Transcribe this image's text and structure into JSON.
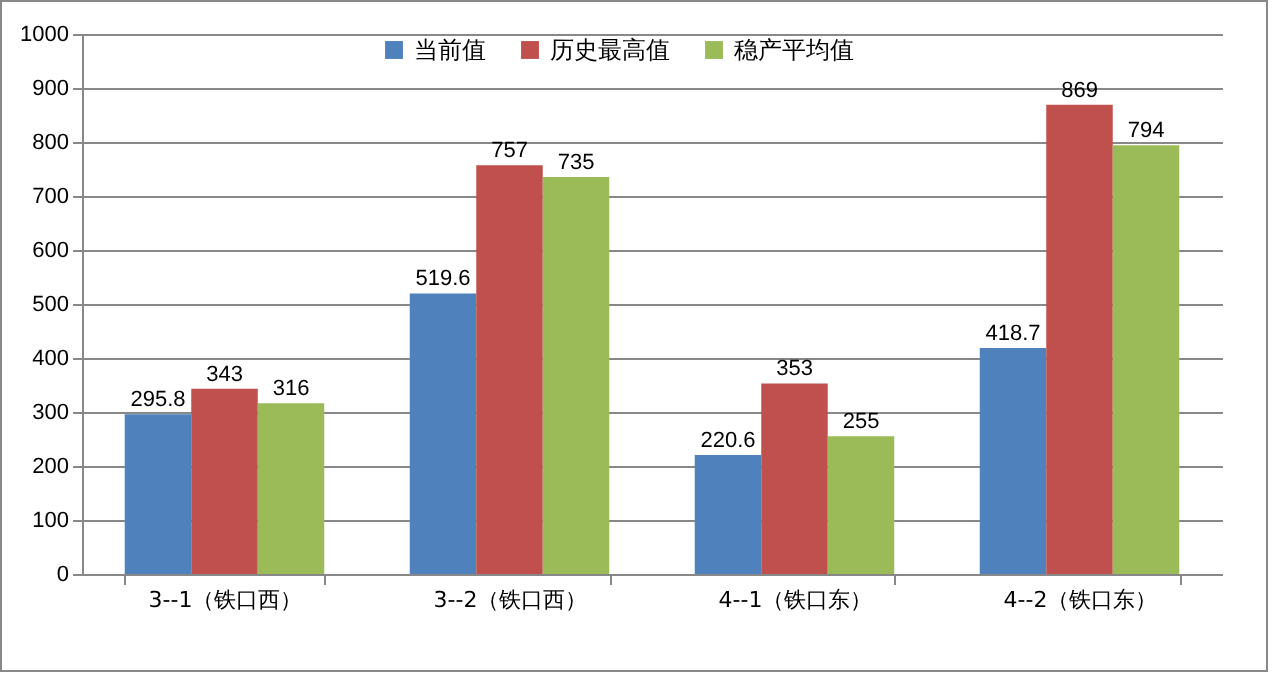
{
  "chart_data": {
    "type": "bar",
    "categories": [
      "3--1（铁口西）",
      "3--2（铁口西）",
      "4--1（铁口东）",
      "4--2（铁口东）"
    ],
    "series": [
      {
        "name": "当前值",
        "color": "#4f81bd",
        "values": [
          295.8,
          519.6,
          220.6,
          418.7
        ]
      },
      {
        "name": "历史最高值",
        "color": "#c0504d",
        "values": [
          343,
          757,
          353,
          869
        ]
      },
      {
        "name": "稳产平均值",
        "color": "#9bbb59",
        "values": [
          316,
          735,
          255,
          794
        ]
      }
    ],
    "ylim": [
      0,
      1000
    ],
    "yticks": [
      0,
      100,
      200,
      300,
      400,
      500,
      600,
      700,
      800,
      900,
      1000
    ],
    "grid": "y",
    "legend": "top",
    "data_labels": true
  }
}
